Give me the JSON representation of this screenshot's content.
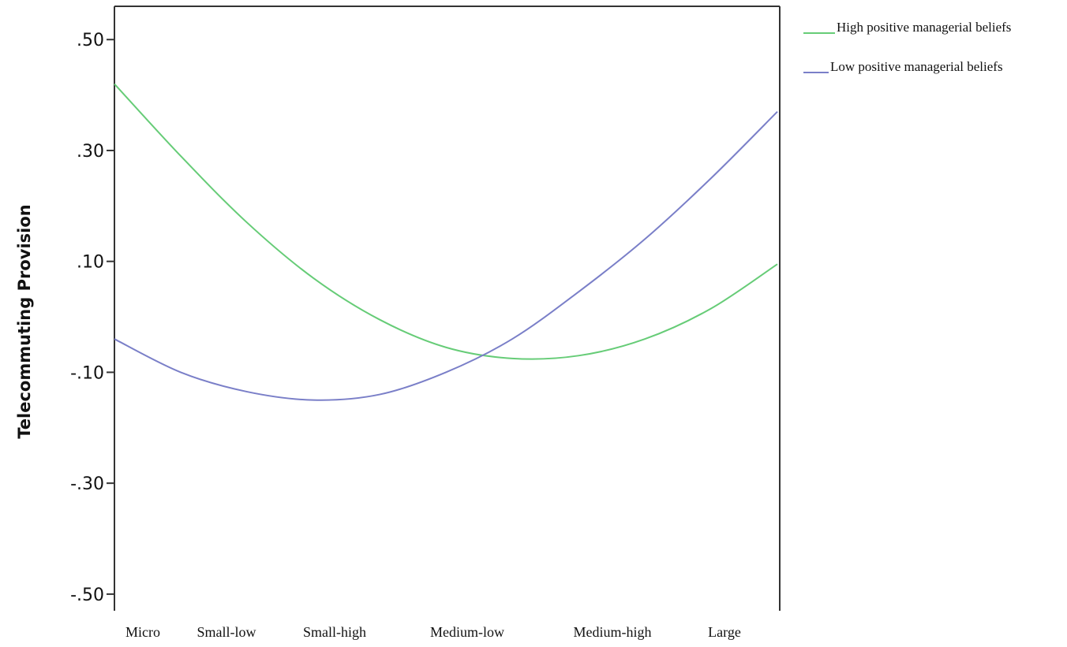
{
  "chart_data": {
    "type": "line",
    "title": "",
    "xlabel": "",
    "ylabel": "Telecommuting Provision",
    "categories": [
      "Micro",
      "Small-low",
      "Small-high",
      "Medium-low",
      "Medium-high",
      "Large"
    ],
    "y_tick_values": [
      0.5,
      0.3,
      0.1,
      -0.1,
      -0.3,
      -0.5
    ],
    "y_tick_labels": [
      ".50",
      ".30",
      ".10",
      "-.10",
      "-.30",
      "-.50"
    ],
    "ylim": [
      -0.53,
      0.56
    ],
    "grid": false,
    "legend_position": "top-right",
    "series": [
      {
        "name": "High positive managerial beliefs",
        "color": "#66cc77",
        "x": [
          0,
          0.5,
          1,
          1.5,
          2,
          2.5,
          3,
          3.5,
          4,
          4.5,
          5
        ],
        "values": [
          0.42,
          0.29,
          0.17,
          0.07,
          -0.005,
          -0.055,
          -0.075,
          -0.07,
          -0.04,
          0.015,
          0.095
        ]
      },
      {
        "name": "Low positive managerial beliefs",
        "color": "#7a7fc8",
        "x": [
          0,
          0.5,
          1,
          1.5,
          2,
          2.5,
          3,
          3.5,
          4,
          4.5,
          5
        ],
        "values": [
          -0.04,
          -0.1,
          -0.135,
          -0.15,
          -0.14,
          -0.1,
          -0.04,
          0.045,
          0.14,
          0.25,
          0.37
        ]
      }
    ]
  }
}
